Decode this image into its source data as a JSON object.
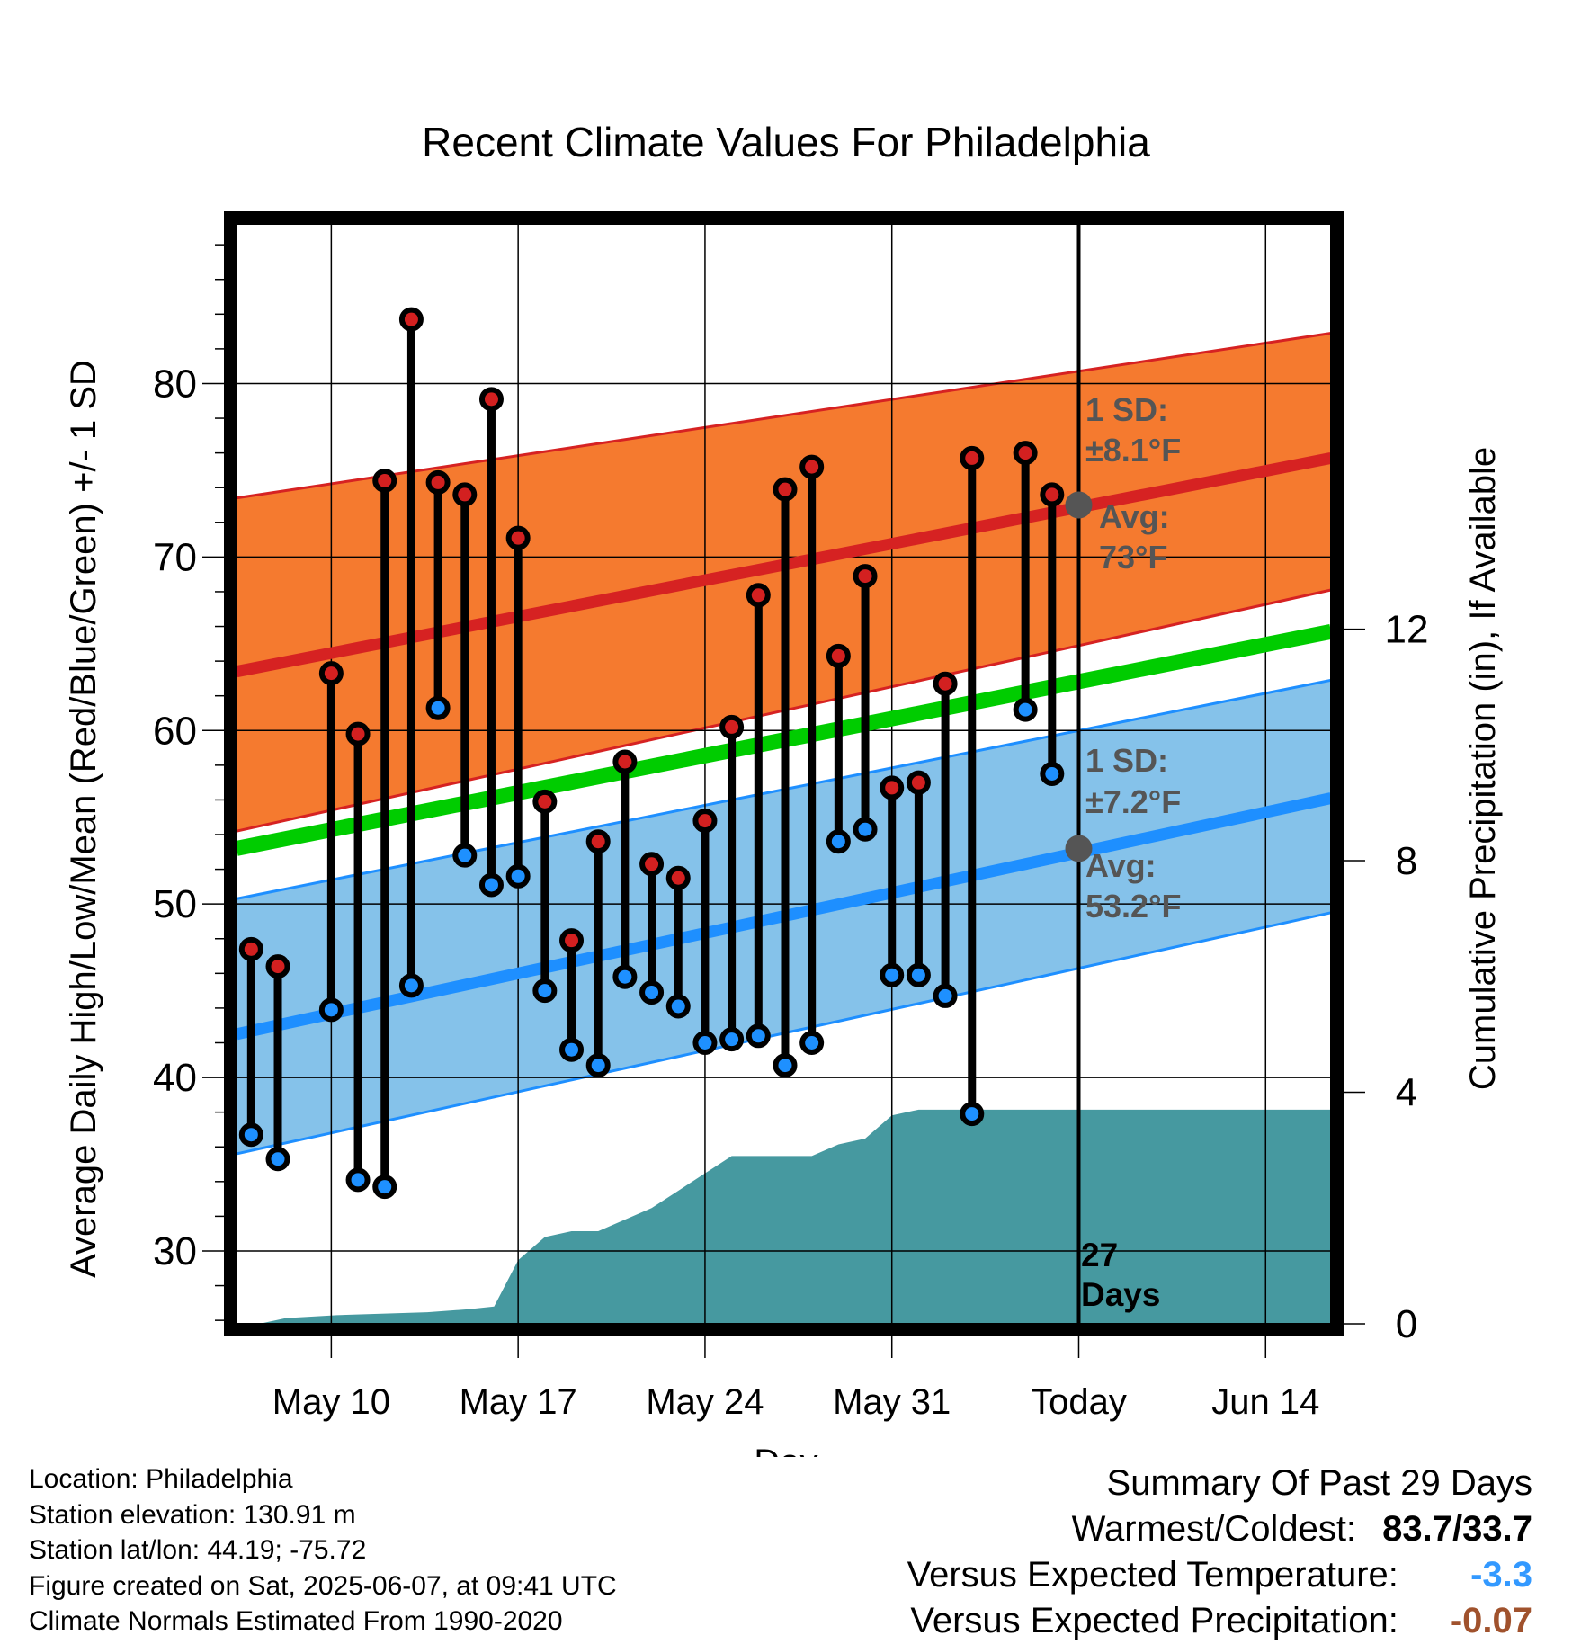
{
  "chart_data": {
    "type": "line",
    "title": "Recent Climate Values For Philadelphia",
    "xlabel": "Day",
    "ylabel": "Average Daily High/Low/Mean (Red/Blue/Green) +/- 1 SD",
    "ylabel_right": "Cumulative Precipitation (in), If Available",
    "ylim": [
      25.8,
      89.2
    ],
    "ylim_right": [
      0,
      19
    ],
    "yticks": [
      30,
      40,
      50,
      60,
      70,
      80
    ],
    "yticks_right": [
      0,
      4,
      8,
      12
    ],
    "xlim": [
      -5.55,
      35.45
    ],
    "xticks": [
      {
        "x": -2,
        "label": "May 10"
      },
      {
        "x": 5,
        "label": "May 17"
      },
      {
        "x": 12,
        "label": "May 24"
      },
      {
        "x": 19,
        "label": "May 31"
      },
      {
        "x": 26,
        "label": "Today"
      },
      {
        "x": 33,
        "label": "Jun 14"
      }
    ],
    "today_x": 26,
    "today_label": [
      "27",
      "Days"
    ],
    "x": [
      -5,
      -4,
      -3,
      -2,
      -1,
      0,
      1,
      2,
      3,
      4,
      5,
      6,
      7,
      8,
      9,
      10,
      11,
      12,
      13,
      14,
      15,
      16,
      17,
      18,
      19,
      20,
      21,
      22,
      23,
      24,
      25
    ],
    "highs": [
      47.4,
      46.4,
      null,
      63.3,
      59.8,
      74.4,
      83.7,
      74.3,
      73.6,
      79.1,
      71.1,
      55.9,
      47.9,
      53.6,
      58.2,
      52.3,
      51.5,
      54.8,
      60.2,
      67.8,
      73.9,
      75.2,
      64.3,
      68.9,
      56.7,
      57.0,
      62.7,
      75.7,
      null,
      76.0,
      73.6
    ],
    "lows": [
      36.7,
      35.3,
      null,
      43.9,
      34.1,
      33.7,
      45.3,
      61.3,
      52.8,
      51.1,
      51.6,
      45.0,
      41.6,
      40.7,
      45.8,
      44.9,
      44.1,
      42.0,
      42.2,
      42.4,
      40.7,
      42.0,
      53.6,
      54.3,
      45.9,
      45.9,
      44.7,
      37.9,
      null,
      61.2,
      57.5
    ],
    "normal_high": {
      "x": [
        -5.55,
        35.45
      ],
      "values": [
        63.4,
        75.7
      ]
    },
    "normal_mean": {
      "x": [
        -5.55,
        35.45
      ],
      "values": [
        53.2,
        65.7
      ]
    },
    "normal_low": {
      "x": [
        -5.55,
        35.45
      ],
      "values": [
        42.5,
        56.1
      ]
    },
    "high_sd_band": {
      "lower": [
        54.2,
        68.1
      ],
      "upper": [
        73.4,
        82.9
      ]
    },
    "low_sd_band": {
      "lower": [
        35.6,
        49.5
      ],
      "upper": [
        50.3,
        62.9
      ]
    },
    "precip_x": [
      -5.55,
      -4.7,
      -3.7,
      -1.8,
      1.6,
      3.1,
      4.1,
      5,
      6,
      7,
      8,
      9,
      10,
      11,
      12,
      13,
      14,
      15,
      16,
      17,
      18,
      19,
      20,
      21,
      35.45
    ],
    "precip": [
      0,
      0,
      0.1,
      0.15,
      0.2,
      0.25,
      0.3,
      1.1,
      1.5,
      1.6,
      1.6,
      1.8,
      2.0,
      2.3,
      2.6,
      2.9,
      2.9,
      2.9,
      2.9,
      3.1,
      3.2,
      3.6,
      3.7,
      3.7,
      3.7
    ],
    "annotations": {
      "high": {
        "sd_label": "1 SD:",
        "sd_value": "±8.1°F",
        "avg_label": "Avg:",
        "avg_value": "73°F",
        "value": 73.0
      },
      "low": {
        "sd_label": "1 SD:",
        "sd_value": "±7.2°F",
        "avg_label": "Avg:",
        "avg_value": "53.2°F",
        "value": 53.2
      }
    },
    "grid": true
  },
  "info": {
    "location": "Location: Philadelphia",
    "elevation": "Station elevation: 130.91 m",
    "latlon": "Station lat/lon: 44.19; -75.72",
    "created": "Figure created on Sat, 2025-06-07, at 09:41 UTC",
    "normals": "Climate Normals Estimated From 1990-2020"
  },
  "summary": {
    "title": "Summary Of Past 29 Days",
    "warm_cold_label": "Warmest/Coldest:",
    "warm_cold_value": "83.7/33.7",
    "temp_label": "Versus Expected Temperature:",
    "temp_value": "-3.3",
    "precip_label": "Versus Expected Precipitation:",
    "precip_value": "-0.07"
  },
  "colors": {
    "high_band": "#f57a2f",
    "high_band_edge": "#d62222",
    "normal_high": "#d62222",
    "low_band": "#85c2ea",
    "low_band_edge": "#1e8fff",
    "normal_low": "#1e8fff",
    "normal_mean": "#00cc00",
    "precip": "#4699a0",
    "high_marker": "#d32020",
    "low_marker": "#1e90ff",
    "annotation": "#555555",
    "temp_value": "#3399ff",
    "precip_value": "#a0522d"
  }
}
